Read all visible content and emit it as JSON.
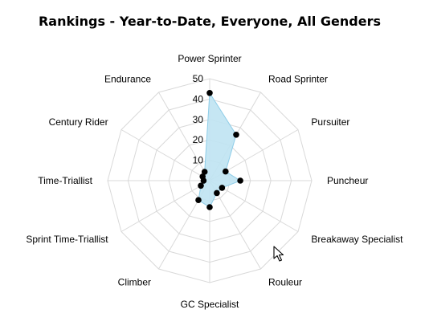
{
  "chart_data": {
    "type": "radar",
    "title": "Rankings - Year-to-Date, Everyone, All Genders",
    "axes": [
      "Power Sprinter",
      "Road Sprinter",
      "Pursuiter",
      "Puncheur",
      "Breakaway Specialist",
      "Rouleur",
      "GC Specialist",
      "Climber",
      "Sprint Time-Triallist",
      "Time-Triallist",
      "Century Rider",
      "Endurance"
    ],
    "series": [
      {
        "values": [
          43,
          26,
          9,
          15,
          7,
          7,
          13,
          11,
          5,
          3,
          4,
          5
        ],
        "fill_color": "#bfe3f2",
        "line_color": "#8ecde8",
        "marker_color": "#000000"
      }
    ],
    "radial_ticks": [
      "10",
      "20",
      "30",
      "40",
      "50"
    ],
    "rmax": 50,
    "grid": true,
    "legend": "none"
  },
  "colors": {
    "grid": "#d9d9d9",
    "text": "#000000"
  },
  "cursor": {
    "icon": "mouse-pointer-icon"
  }
}
